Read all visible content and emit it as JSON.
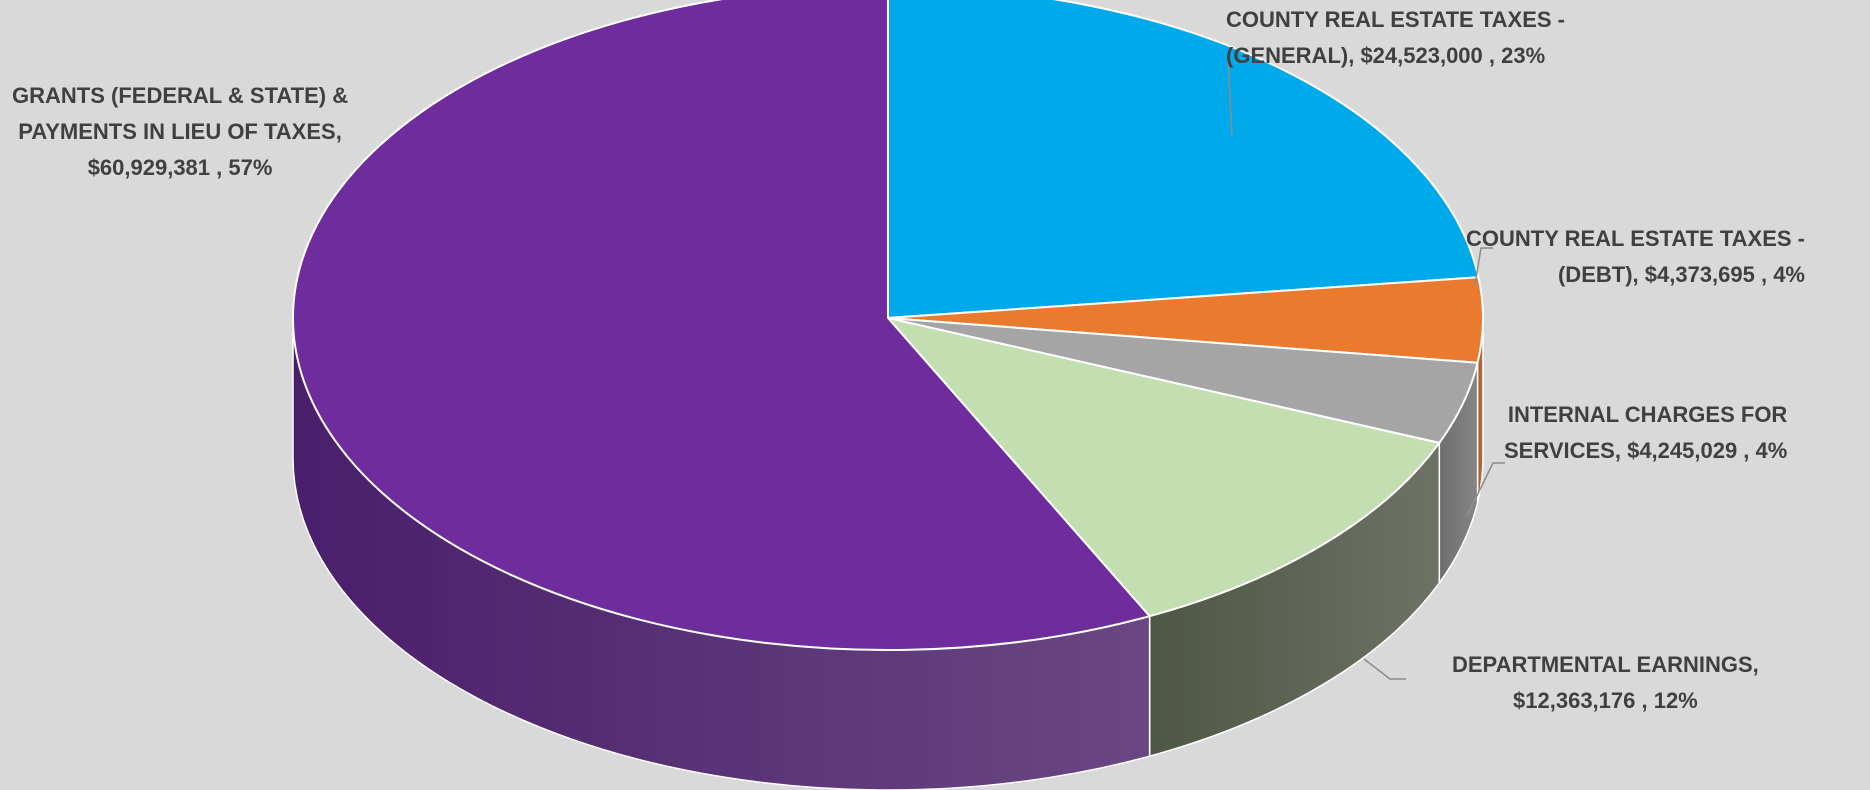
{
  "chart_data": {
    "type": "pie",
    "style": "3d",
    "title": "",
    "slices": [
      {
        "name": "COUNTY REAL ESTATE TAXES - (GENERAL)",
        "value": 24523000,
        "percent": "23%",
        "label_lines": [
          "COUNTY REAL ESTATE TAXES -",
          "(GENERAL), $24,523,000 , 23%"
        ],
        "color": "#00a9ea",
        "side_color": "#007aa8"
      },
      {
        "name": "COUNTY REAL ESTATE TAXES - (DEBT)",
        "value": 4373695,
        "percent": "4%",
        "label_lines": [
          "COUNTY REAL ESTATE TAXES -",
          "(DEBT), $4,373,695 , 4%"
        ],
        "color": "#e97a2e",
        "side_color": "#a9561d"
      },
      {
        "name": "INTERNAL CHARGES FOR SERVICES",
        "value": 4245029,
        "percent": "4%",
        "label_lines": [
          "INTERNAL CHARGES FOR",
          "SERVICES, $4,245,029 , 4%"
        ],
        "color": "#a5a5a5",
        "side_color": "#6e6e6e"
      },
      {
        "name": "DEPARTMENTAL EARNINGS",
        "value": 12363176,
        "percent": "12%",
        "label_lines": [
          "DEPARTMENTAL EARNINGS,",
          "$12,363,176 , 12%"
        ],
        "color": "#c3deb0",
        "side_color": "#4e5645"
      },
      {
        "name": "GRANTS (FEDERAL & STATE) & PAYMENTS IN LIEU OF TAXES",
        "value": 60929381,
        "percent": "57%",
        "label_lines": [
          "GRANTS (FEDERAL & STATE) &",
          "PAYMENTS IN LIEU OF TAXES,",
          "$60,929,381 , 57%"
        ],
        "color": "#6e2c9c",
        "side_color": "#4a1e6b"
      }
    ],
    "start_angle": "12 o'clock",
    "direction": "clockwise",
    "legend": "none",
    "data_labels": "outside with leader lines"
  }
}
